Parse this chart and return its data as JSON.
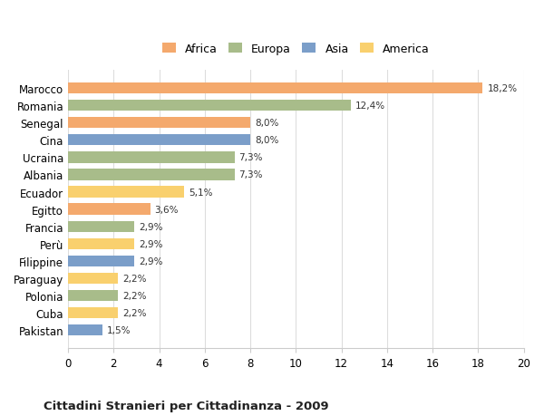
{
  "categories": [
    "Marocco",
    "Romania",
    "Senegal",
    "Cina",
    "Ucraina",
    "Albania",
    "Ecuador",
    "Egitto",
    "Francia",
    "Perù",
    "Filippine",
    "Paraguay",
    "Polonia",
    "Cuba",
    "Pakistan"
  ],
  "values": [
    18.2,
    12.4,
    8.0,
    8.0,
    7.3,
    7.3,
    5.1,
    3.6,
    2.9,
    2.9,
    2.9,
    2.2,
    2.2,
    2.2,
    1.5
  ],
  "labels": [
    "18,2%",
    "12,4%",
    "8,0%",
    "8,0%",
    "7,3%",
    "7,3%",
    "5,1%",
    "3,6%",
    "2,9%",
    "2,9%",
    "2,9%",
    "2,2%",
    "2,2%",
    "2,2%",
    "1,5%"
  ],
  "colors": [
    "#F4A96D",
    "#A8BC8A",
    "#F4A96D",
    "#7B9EC9",
    "#A8BC8A",
    "#A8BC8A",
    "#F9D06E",
    "#F4A96D",
    "#A8BC8A",
    "#F9D06E",
    "#7B9EC9",
    "#F9D06E",
    "#A8BC8A",
    "#F9D06E",
    "#7B9EC9"
  ],
  "continents": [
    "Africa",
    "Europa",
    "Africa",
    "Asia",
    "Europa",
    "Europa",
    "America",
    "Africa",
    "Europa",
    "America",
    "Asia",
    "America",
    "Europa",
    "America",
    "Asia"
  ],
  "legend_labels": [
    "Africa",
    "Europa",
    "Asia",
    "America"
  ],
  "legend_colors": [
    "#F4A96D",
    "#A8BC8A",
    "#7B9EC9",
    "#F9D06E"
  ],
  "title": "Cittadini Stranieri per Cittadinanza - 2009",
  "xlim": [
    0,
    20
  ],
  "xticks": [
    0,
    2,
    4,
    6,
    8,
    10,
    12,
    14,
    16,
    18,
    20
  ],
  "background_color": "#ffffff",
  "grid_color": "#dddddd",
  "bar_height": 0.65
}
